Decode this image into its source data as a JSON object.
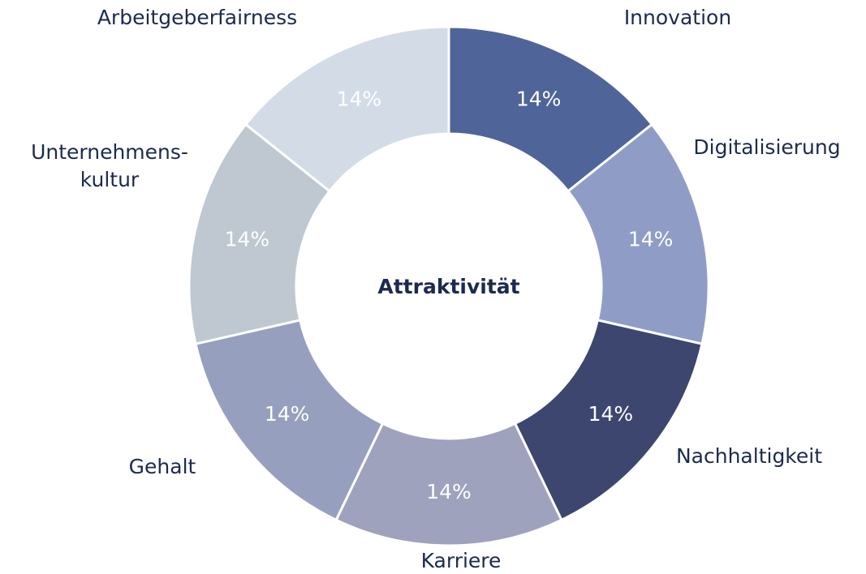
{
  "chart_data": {
    "type": "donut",
    "center_label": "Attraktivität",
    "categories": [
      "Innovation",
      "Digitalisierung",
      "Nachhaltigkeit",
      "Karriere",
      "Gehalt",
      "Unternehmens-\nkultur",
      "Arbeitgeberfairness"
    ],
    "values": [
      14,
      14,
      14,
      14,
      14,
      14,
      14
    ],
    "value_labels": [
      "14%",
      "14%",
      "14%",
      "14%",
      "14%",
      "14%",
      "14%"
    ],
    "colors": [
      "#4f6499",
      "#8f9dc6",
      "#3d466e",
      "#9ea2bd",
      "#979fbe",
      "#bfc8d1",
      "#d3dce6"
    ]
  }
}
